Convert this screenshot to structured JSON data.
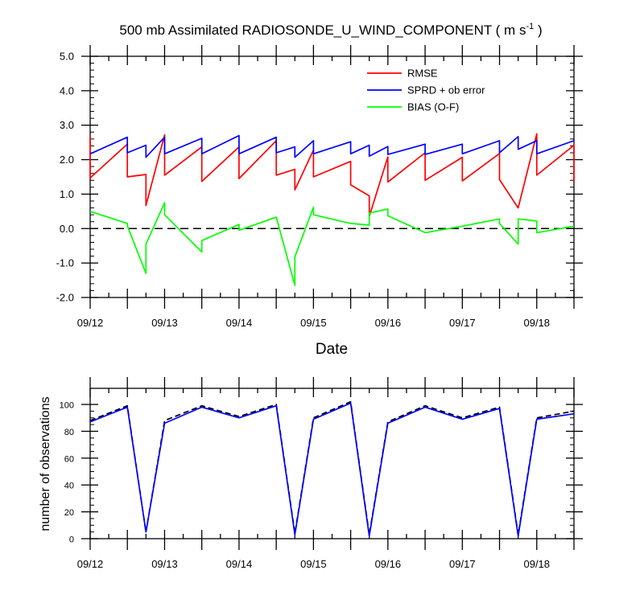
{
  "chart_data": [
    {
      "type": "line",
      "title": "500 mb Assimilated RADIOSONDE_U_WIND_COMPONENT ( m s",
      "title_superscript": "-1",
      "title_suffix": " )",
      "xlabel": "Date",
      "ylabel": "",
      "xlim": [
        0,
        6.5
      ],
      "ylim": [
        -2.0,
        5.0
      ],
      "yticks": [
        -2.0,
        -1.0,
        0.0,
        1.0,
        2.0,
        3.0,
        4.0,
        5.0
      ],
      "ytick_labels": [
        "-2.0",
        "-1.0",
        "0.0",
        "1.0",
        "2.0",
        "3.0",
        "4.0",
        "5.0"
      ],
      "xtick_labels": [
        "09/12",
        "09/13",
        "09/14",
        "09/15",
        "09/16",
        "09/17",
        "09/18"
      ],
      "zero_line": true,
      "legend_position": "top-right",
      "series": [
        {
          "name": "RMSE",
          "color": "#ff0000",
          "points": [
            [
              0,
              2.65
            ],
            [
              0,
              1.47
            ],
            [
              0.5,
              2.45
            ],
            [
              0.5,
              1.5
            ],
            [
              0.75,
              1.57
            ],
            [
              0.75,
              0.67
            ],
            [
              1.0,
              2.72
            ],
            [
              1.0,
              1.55
            ],
            [
              1.5,
              2.37
            ],
            [
              1.5,
              1.37
            ],
            [
              2.0,
              2.37
            ],
            [
              2.0,
              1.45
            ],
            [
              2.5,
              2.55
            ],
            [
              2.5,
              1.55
            ],
            [
              2.75,
              1.72
            ],
            [
              2.75,
              1.12
            ],
            [
              3.0,
              2.28
            ],
            [
              3.0,
              1.5
            ],
            [
              3.5,
              1.95
            ],
            [
              3.5,
              1.27
            ],
            [
              3.75,
              0.95
            ],
            [
              3.75,
              0.35
            ],
            [
              4.0,
              2.08
            ],
            [
              4.0,
              1.35
            ],
            [
              4.5,
              2.2
            ],
            [
              4.5,
              1.4
            ],
            [
              5.0,
              2.07
            ],
            [
              5.0,
              1.38
            ],
            [
              5.5,
              2.18
            ],
            [
              5.5,
              1.42
            ],
            [
              5.75,
              0.6
            ],
            [
              6.0,
              2.75
            ],
            [
              6.0,
              1.55
            ],
            [
              6.5,
              2.42
            ],
            [
              6.5,
              1.37
            ]
          ]
        },
        {
          "name": "SPRD + ob error",
          "color": "#0000ff",
          "points": [
            [
              0,
              2.17
            ],
            [
              0.5,
              2.65
            ],
            [
              0.5,
              2.2
            ],
            [
              0.75,
              2.42
            ],
            [
              0.75,
              2.07
            ],
            [
              1.0,
              2.65
            ],
            [
              1.0,
              2.17
            ],
            [
              1.5,
              2.62
            ],
            [
              1.5,
              2.17
            ],
            [
              2.0,
              2.7
            ],
            [
              2.0,
              2.17
            ],
            [
              2.5,
              2.65
            ],
            [
              2.5,
              2.2
            ],
            [
              2.75,
              2.37
            ],
            [
              2.75,
              2.07
            ],
            [
              3.0,
              2.55
            ],
            [
              3.0,
              2.17
            ],
            [
              3.5,
              2.52
            ],
            [
              3.5,
              2.17
            ],
            [
              3.75,
              2.42
            ],
            [
              3.75,
              2.1
            ],
            [
              4.0,
              2.38
            ],
            [
              4.0,
              2.15
            ],
            [
              4.5,
              2.45
            ],
            [
              4.5,
              2.15
            ],
            [
              5.0,
              2.45
            ],
            [
              5.0,
              2.17
            ],
            [
              5.5,
              2.55
            ],
            [
              5.5,
              2.2
            ],
            [
              5.75,
              2.67
            ],
            [
              5.75,
              2.3
            ],
            [
              6.0,
              2.55
            ],
            [
              6.0,
              2.17
            ],
            [
              6.5,
              2.55
            ]
          ]
        },
        {
          "name": "BIAS (O-F)",
          "color": "#00ff00",
          "points": [
            [
              0,
              0.5
            ],
            [
              0.5,
              0.15
            ],
            [
              0.5,
              0.08
            ],
            [
              0.75,
              -1.3
            ],
            [
              0.75,
              -0.45
            ],
            [
              1.0,
              0.75
            ],
            [
              1.0,
              0.4
            ],
            [
              1.5,
              -0.68
            ],
            [
              1.5,
              -0.35
            ],
            [
              2.0,
              0.12
            ],
            [
              2.0,
              -0.05
            ],
            [
              2.5,
              0.33
            ],
            [
              2.75,
              -1.65
            ],
            [
              2.75,
              -0.82
            ],
            [
              3.0,
              0.62
            ],
            [
              3.0,
              0.4
            ],
            [
              3.5,
              0.15
            ],
            [
              3.75,
              0.1
            ],
            [
              3.75,
              0.45
            ],
            [
              4.0,
              0.57
            ],
            [
              4.0,
              0.37
            ],
            [
              4.5,
              -0.12
            ],
            [
              5.0,
              0.07
            ],
            [
              5.5,
              0.28
            ],
            [
              5.5,
              0.15
            ],
            [
              5.75,
              -0.45
            ],
            [
              5.75,
              0.28
            ],
            [
              6.0,
              0.22
            ],
            [
              6.0,
              -0.12
            ],
            [
              6.5,
              0.07
            ]
          ]
        }
      ]
    },
    {
      "type": "line",
      "xlabel": "",
      "ylabel": "number of observations",
      "xlim": [
        0,
        6.5
      ],
      "ylim": [
        0,
        112
      ],
      "yticks": [
        0,
        20,
        40,
        60,
        80,
        100
      ],
      "ytick_labels": [
        "0",
        "20",
        "40",
        "60",
        "80",
        "100"
      ],
      "xtick_labels": [
        "09/12",
        "09/13",
        "09/14",
        "09/15",
        "09/16",
        "09/17",
        "09/18"
      ],
      "series": [
        {
          "color": "#000000",
          "dashed": true,
          "points": [
            [
              0,
              88
            ],
            [
              0.5,
              99
            ],
            [
              0.75,
              5
            ],
            [
              1.0,
              88
            ],
            [
              1.5,
              99
            ],
            [
              2.0,
              91
            ],
            [
              2.5,
              100
            ],
            [
              2.75,
              4
            ],
            [
              3.0,
              90
            ],
            [
              3.5,
              102
            ],
            [
              3.75,
              3
            ],
            [
              4.0,
              87
            ],
            [
              4.5,
              99
            ],
            [
              5.0,
              90
            ],
            [
              5.5,
              98
            ],
            [
              5.75,
              3
            ],
            [
              6.0,
              90
            ],
            [
              6.5,
              95
            ]
          ]
        },
        {
          "color": "#0000ff",
          "points": [
            [
              0,
              87
            ],
            [
              0.5,
              98
            ],
            [
              0.75,
              5
            ],
            [
              1.0,
              86
            ],
            [
              1.5,
              98
            ],
            [
              2.0,
              90
            ],
            [
              2.5,
              99
            ],
            [
              2.75,
              3
            ],
            [
              3.0,
              89
            ],
            [
              3.5,
              101
            ],
            [
              3.75,
              2
            ],
            [
              4.0,
              86
            ],
            [
              4.5,
              98
            ],
            [
              5.0,
              89
            ],
            [
              5.5,
              97
            ],
            [
              5.75,
              2
            ],
            [
              6.0,
              89
            ],
            [
              6.5,
              93
            ]
          ]
        }
      ]
    }
  ]
}
